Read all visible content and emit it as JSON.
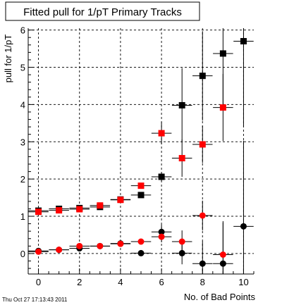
{
  "footer": {
    "timestamp": "Thu Oct 27 17:13:43 2011"
  },
  "chart_data": {
    "type": "scatter",
    "title": "Fitted pull for 1/pT Primary Tracks",
    "xlabel": "No. of Bad Points",
    "ylabel": "pull for 1/pT",
    "xlim": [
      -0.5,
      10.5
    ],
    "ylim": [
      -0.55,
      6.05
    ],
    "x_ticks": [
      0,
      2,
      4,
      6,
      8,
      10
    ],
    "y_ticks": [
      0,
      1,
      2,
      3,
      4,
      5,
      6
    ],
    "grid": true,
    "series": [
      {
        "marker": "square",
        "color": "#000000",
        "x": [
          0,
          1,
          2,
          3,
          4,
          5,
          6,
          7,
          8,
          9,
          10
        ],
        "y": [
          1.15,
          1.2,
          1.22,
          1.25,
          1.45,
          1.57,
          2.06,
          3.98,
          4.77,
          5.37,
          5.7
        ],
        "yerr": [
          0.03,
          0.03,
          0.03,
          0.04,
          0.05,
          0.07,
          0.12,
          1.0,
          1.2,
          1.4,
          2.3
        ]
      },
      {
        "marker": "square",
        "color": "#ff0000",
        "x": [
          0,
          1,
          2,
          3,
          4,
          5,
          6,
          7,
          8,
          9
        ],
        "y": [
          1.12,
          1.16,
          1.19,
          1.29,
          1.44,
          1.82,
          3.23,
          2.56,
          2.93,
          3.92
        ],
        "yerr": [
          0.03,
          0.03,
          0.03,
          0.04,
          0.05,
          0.08,
          0.3,
          0.5,
          0.5,
          0.9
        ]
      },
      {
        "marker": "circle",
        "color": "#000000",
        "x": [
          0,
          1,
          2,
          3,
          4,
          5,
          6,
          7,
          8,
          9,
          10
        ],
        "y": [
          0.07,
          0.1,
          0.14,
          0.2,
          0.27,
          0.01,
          0.58,
          0.01,
          -0.27,
          -0.27,
          0.73
        ],
        "yerr": [
          0.02,
          0.02,
          0.03,
          0.03,
          0.04,
          0.06,
          0.2,
          0.3,
          0.6,
          1.1,
          2.3
        ]
      },
      {
        "marker": "circle",
        "color": "#ff0000",
        "x": [
          0,
          1,
          2,
          3,
          4,
          5,
          6,
          7,
          8,
          9
        ],
        "y": [
          0.05,
          0.1,
          0.2,
          0.2,
          0.26,
          0.32,
          0.45,
          0.32,
          1.02,
          -0.03
        ],
        "yerr": [
          0.02,
          0.02,
          0.03,
          0.03,
          0.04,
          0.06,
          0.15,
          0.3,
          0.4,
          0.9
        ]
      }
    ]
  }
}
